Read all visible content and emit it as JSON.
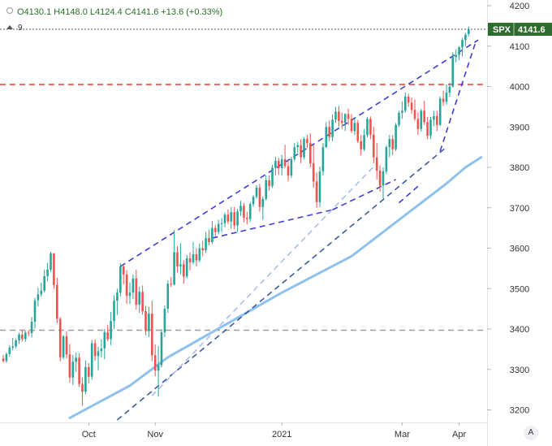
{
  "header": {
    "ohlc_text": "O4130.1 H4148.0 L4124.4 C4141.6 +13.6 (+0.33%)",
    "collapse_count": "9",
    "auto_scale_button": "A"
  },
  "colors": {
    "up": "#26a69a",
    "down": "#ef5350",
    "trend_line": "#3d3dd6",
    "support_line": "#3a5aa0",
    "ma_line": "#8ec1ec",
    "faint_line": "#a9bde8",
    "resistance_red": "#e53935",
    "support_gray": "#9e9e9e",
    "label_green": "#2e6b2e"
  },
  "chart_data": {
    "type": "candlestick",
    "symbol": "SPX",
    "last_price_label": "4141.6",
    "y_range": [
      3175,
      4210
    ],
    "y_ticks": [
      3200,
      3300,
      3400,
      3500,
      3600,
      3700,
      3800,
      3900,
      4000,
      4100,
      4200
    ],
    "x_labels": [
      {
        "label": "Oct",
        "bar": 27
      },
      {
        "label": "Nov",
        "bar": 48
      },
      {
        "label": "2021",
        "bar": 88
      },
      {
        "label": "Mar",
        "bar": 126
      },
      {
        "label": "Apr",
        "bar": 144
      }
    ],
    "horizontal_levels": [
      {
        "name": "resistance",
        "value": 4005,
        "style": "dashed",
        "color": "#e53935"
      },
      {
        "name": "support",
        "value": 3397,
        "style": "dashed",
        "color": "#9e9e9e"
      },
      {
        "name": "last",
        "value": 4141.6,
        "style": "dotted",
        "color": "#555555"
      }
    ],
    "trendlines": [
      {
        "name": "channel-upper",
        "from": [
          37,
          3555
        ],
        "to": [
          150,
          4115
        ],
        "color": "#3d3dd6"
      },
      {
        "name": "wedge-lower",
        "from": [
          66,
          3625
        ],
        "to": [
          104,
          3695
        ],
        "color": "#3d3dd6"
      },
      {
        "name": "wedge-upper-b",
        "from": [
          104,
          3695
        ],
        "to": [
          124,
          3770
        ],
        "color": "#3d3dd6"
      },
      {
        "name": "wedge-lower-b",
        "from": [
          125,
          3712
        ],
        "to": [
          132,
          3760
        ],
        "color": "#3d3dd6"
      },
      {
        "name": "final-leg",
        "from": [
          138,
          3840
        ],
        "to": [
          149,
          4105
        ],
        "color": "#3d3dd6"
      },
      {
        "name": "long-support",
        "from": [
          36,
          3175
        ],
        "to": [
          140,
          3850
        ],
        "color": "#3a5aa0"
      },
      {
        "name": "faint-support",
        "from": [
          47,
          3235
        ],
        "to": [
          118,
          3810
        ],
        "color": "#a9bde8"
      }
    ],
    "moving_average": {
      "points": [
        [
          21,
          3180
        ],
        [
          40,
          3260
        ],
        [
          52,
          3330
        ],
        [
          70,
          3410
        ],
        [
          88,
          3490
        ],
        [
          110,
          3580
        ],
        [
          130,
          3700
        ],
        [
          140,
          3760
        ],
        [
          146,
          3800
        ],
        [
          151,
          3825
        ]
      ]
    },
    "ohlc": [
      [
        3327,
        3336,
        3317,
        3321
      ],
      [
        3321,
        3342,
        3316,
        3338
      ],
      [
        3338,
        3360,
        3332,
        3354
      ],
      [
        3354,
        3378,
        3347,
        3357
      ],
      [
        3357,
        3376,
        3352,
        3372
      ],
      [
        3372,
        3391,
        3363,
        3386
      ],
      [
        3386,
        3398,
        3369,
        3375
      ],
      [
        3375,
        3396,
        3368,
        3391
      ],
      [
        3391,
        3397,
        3382,
        3390
      ],
      [
        3390,
        3430,
        3379,
        3418
      ],
      [
        3418,
        3477,
        3401,
        3471
      ],
      [
        3471,
        3502,
        3456,
        3486
      ],
      [
        3486,
        3515,
        3480,
        3495
      ],
      [
        3495,
        3547,
        3490,
        3531
      ],
      [
        3531,
        3564,
        3518,
        3547
      ],
      [
        3547,
        3591,
        3542,
        3587
      ],
      [
        3587,
        3588,
        3500,
        3509
      ],
      [
        3509,
        3527,
        3414,
        3425
      ],
      [
        3425,
        3430,
        3320,
        3330
      ],
      [
        3330,
        3385,
        3325,
        3382
      ],
      [
        3382,
        3395,
        3327,
        3337
      ],
      [
        3337,
        3363,
        3268,
        3280
      ],
      [
        3280,
        3336,
        3262,
        3319
      ],
      [
        3319,
        3342,
        3294,
        3329
      ],
      [
        3329,
        3340,
        3256,
        3264
      ],
      [
        3264,
        3280,
        3210,
        3245
      ],
      [
        3245,
        3322,
        3239,
        3306
      ],
      [
        3306,
        3316,
        3265,
        3282
      ],
      [
        3282,
        3373,
        3275,
        3365
      ],
      [
        3365,
        3375,
        3321,
        3333
      ],
      [
        3333,
        3356,
        3298,
        3345
      ],
      [
        3345,
        3375,
        3330,
        3352
      ],
      [
        3352,
        3400,
        3325,
        3392
      ],
      [
        3392,
        3410,
        3370,
        3375
      ],
      [
        3375,
        3442,
        3360,
        3420
      ],
      [
        3420,
        3484,
        3400,
        3470
      ],
      [
        3470,
        3500,
        3435,
        3490
      ],
      [
        3490,
        3563,
        3480,
        3555
      ],
      [
        3555,
        3560,
        3510,
        3535
      ],
      [
        3535,
        3545,
        3462,
        3482
      ],
      [
        3482,
        3515,
        3462,
        3490
      ],
      [
        3490,
        3535,
        3474,
        3525
      ],
      [
        3525,
        3547,
        3448,
        3460
      ],
      [
        3460,
        3505,
        3440,
        3492
      ],
      [
        3492,
        3508,
        3435,
        3444
      ],
      [
        3444,
        3457,
        3385,
        3395
      ],
      [
        3395,
        3455,
        3380,
        3438
      ],
      [
        3438,
        3470,
        3320,
        3335
      ],
      [
        3335,
        3362,
        3283,
        3297
      ],
      [
        3297,
        3358,
        3233,
        3311
      ],
      [
        3311,
        3400,
        3305,
        3392
      ],
      [
        3392,
        3458,
        3380,
        3450
      ],
      [
        3450,
        3520,
        3440,
        3512
      ],
      [
        3512,
        3528,
        3504,
        3510
      ],
      [
        3510,
        3645,
        3508,
        3590
      ],
      [
        3590,
        3605,
        3540,
        3555
      ],
      [
        3555,
        3612,
        3535,
        3560
      ],
      [
        3560,
        3570,
        3512,
        3530
      ],
      [
        3530,
        3583,
        3525,
        3575
      ],
      [
        3575,
        3590,
        3545,
        3565
      ],
      [
        3565,
        3616,
        3560,
        3585
      ],
      [
        3585,
        3600,
        3555,
        3570
      ],
      [
        3570,
        3612,
        3565,
        3600
      ],
      [
        3600,
        3618,
        3580,
        3595
      ],
      [
        3595,
        3640,
        3588,
        3625
      ],
      [
        3625,
        3645,
        3607,
        3615
      ],
      [
        3615,
        3667,
        3610,
        3650
      ],
      [
        3650,
        3657,
        3630,
        3640
      ],
      [
        3640,
        3670,
        3634,
        3660
      ],
      [
        3660,
        3674,
        3640,
        3662
      ],
      [
        3662,
        3688,
        3652,
        3683
      ],
      [
        3683,
        3696,
        3660,
        3666
      ],
      [
        3666,
        3702,
        3648,
        3689
      ],
      [
        3689,
        3702,
        3647,
        3656
      ],
      [
        3656,
        3697,
        3640,
        3691
      ],
      [
        3691,
        3717,
        3680,
        3705
      ],
      [
        3705,
        3712,
        3664,
        3675
      ],
      [
        3675,
        3690,
        3659,
        3672
      ],
      [
        3672,
        3714,
        3665,
        3709
      ],
      [
        3709,
        3731,
        3702,
        3727
      ],
      [
        3727,
        3756,
        3722,
        3750
      ],
      [
        3750,
        3759,
        3690,
        3702
      ],
      [
        3702,
        3728,
        3670,
        3722
      ],
      [
        3722,
        3780,
        3718,
        3768
      ],
      [
        3768,
        3780,
        3742,
        3754
      ],
      [
        3754,
        3806,
        3749,
        3799
      ],
      [
        3799,
        3826,
        3780,
        3816
      ],
      [
        3816,
        3824,
        3781,
        3798
      ],
      [
        3798,
        3831,
        3780,
        3820
      ],
      [
        3820,
        3856,
        3798,
        3803
      ],
      [
        3803,
        3818,
        3765,
        3780
      ],
      [
        3780,
        3826,
        3774,
        3820
      ],
      [
        3820,
        3860,
        3815,
        3850
      ],
      [
        3850,
        3863,
        3836,
        3855
      ],
      [
        3855,
        3870,
        3810,
        3825
      ],
      [
        3825,
        3875,
        3820,
        3870
      ],
      [
        3870,
        3880,
        3848,
        3860
      ],
      [
        3860,
        3884,
        3800,
        3810
      ],
      [
        3810,
        3856,
        3750,
        3765
      ],
      [
        3765,
        3787,
        3700,
        3714
      ],
      [
        3714,
        3802,
        3702,
        3790
      ],
      [
        3790,
        3860,
        3780,
        3850
      ],
      [
        3850,
        3912,
        3848,
        3900
      ],
      [
        3900,
        3916,
        3865,
        3875
      ],
      [
        3875,
        3931,
        3865,
        3918
      ],
      [
        3918,
        3950,
        3910,
        3938
      ],
      [
        3938,
        3952,
        3900,
        3915
      ],
      [
        3915,
        3935,
        3895,
        3910
      ],
      [
        3910,
        3934,
        3890,
        3932
      ],
      [
        3932,
        3945,
        3905,
        3920
      ],
      [
        3920,
        3932,
        3885,
        3890
      ],
      [
        3890,
        3924,
        3880,
        3910
      ],
      [
        3910,
        3917,
        3860,
        3865
      ],
      [
        3865,
        3880,
        3830,
        3845
      ],
      [
        3845,
        3895,
        3840,
        3880
      ],
      [
        3880,
        3925,
        3874,
        3920
      ],
      [
        3920,
        3926,
        3870,
        3881
      ],
      [
        3881,
        3900,
        3810,
        3825
      ],
      [
        3825,
        3860,
        3770,
        3792
      ],
      [
        3792,
        3805,
        3740,
        3755
      ],
      [
        3755,
        3800,
        3723,
        3790
      ],
      [
        3790,
        3855,
        3783,
        3850
      ],
      [
        3850,
        3880,
        3825,
        3870
      ],
      [
        3870,
        3880,
        3830,
        3845
      ],
      [
        3845,
        3910,
        3840,
        3905
      ],
      [
        3905,
        3940,
        3900,
        3935
      ],
      [
        3935,
        3963,
        3920,
        3940
      ],
      [
        3940,
        3985,
        3935,
        3975
      ],
      [
        3975,
        3982,
        3950,
        3960
      ],
      [
        3960,
        3973,
        3933,
        3942
      ],
      [
        3942,
        3968,
        3915,
        3920
      ],
      [
        3920,
        3936,
        3880,
        3895
      ],
      [
        3895,
        3945,
        3888,
        3940
      ],
      [
        3940,
        3965,
        3905,
        3912
      ],
      [
        3912,
        3925,
        3870,
        3878
      ],
      [
        3878,
        3925,
        3870,
        3918
      ],
      [
        3918,
        3940,
        3902,
        3927
      ],
      [
        3927,
        3940,
        3890,
        3905
      ],
      [
        3905,
        3975,
        3902,
        3970
      ],
      [
        3970,
        3990,
        3952,
        3962
      ],
      [
        3962,
        4005,
        3955,
        3985
      ],
      [
        3985,
        4010,
        3975,
        4000
      ],
      [
        4000,
        4085,
        3998,
        4073
      ],
      [
        4073,
        4092,
        4060,
        4078
      ],
      [
        4078,
        4100,
        4065,
        4097
      ],
      [
        4097,
        4120,
        4075,
        4115
      ],
      [
        4115,
        4133,
        4100,
        4128
      ],
      [
        4130.1,
        4148.0,
        4124.4,
        4141.6
      ]
    ]
  }
}
